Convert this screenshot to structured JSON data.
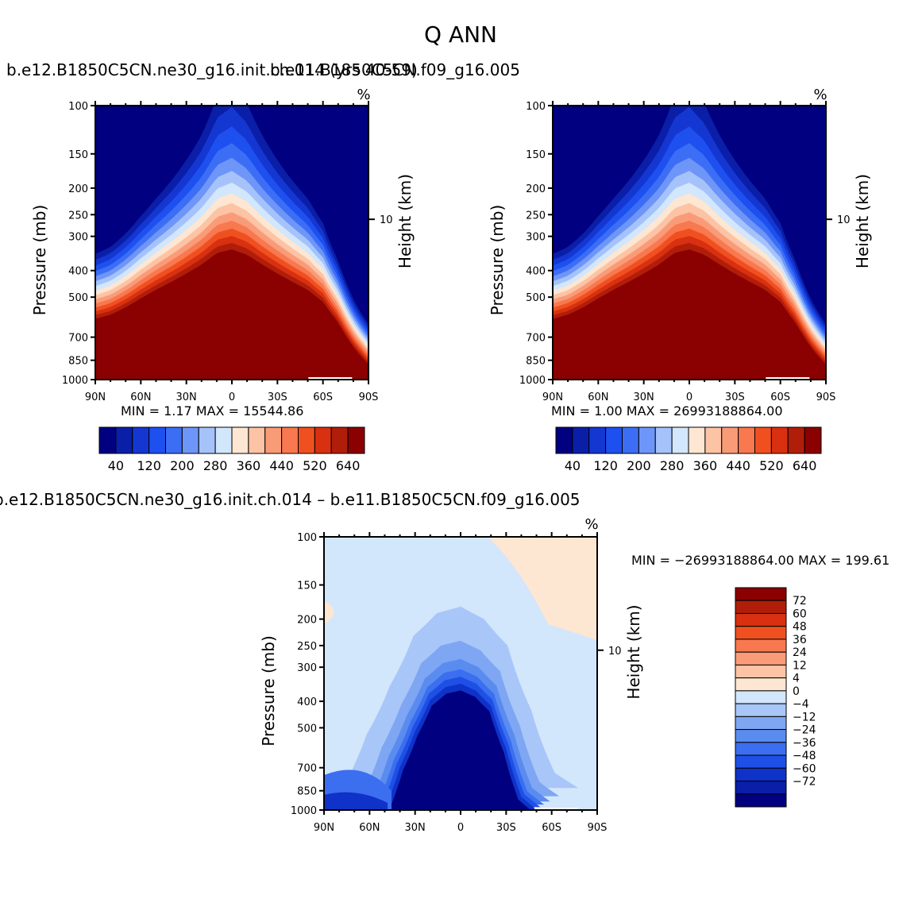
{
  "figure_title": "Q  ANN",
  "colors": {
    "main_levels": [
      "#000080",
      "#0a1ea8",
      "#1437d2",
      "#1e50f0",
      "#3c6ef5",
      "#6e96f8",
      "#a5c3fa",
      "#d2e6fc",
      "#fde6d2",
      "#fcc3a5",
      "#fa9b78",
      "#f87850",
      "#f05020",
      "#d83010",
      "#b01e0a",
      "#8b0000"
    ],
    "diff_levels": [
      "#000080",
      "#0a1ea8",
      "#0f32c8",
      "#1e50e6",
      "#3c6ef0",
      "#5a8cf0",
      "#7ea6f3",
      "#a8c6f8",
      "#d2e6fc",
      "#fde6d2",
      "#fcc3a5",
      "#fa9b78",
      "#f87850",
      "#f05020",
      "#d83010",
      "#b01e0a",
      "#8b0000"
    ]
  },
  "chart_data": [
    {
      "type": "contour",
      "title": "b.e12.B1850C5CN.ne30_g16.init.ch.014 (yrs 40-59)",
      "units": "%",
      "xlabel": "",
      "ylabel": "Pressure (mb)",
      "ylabel_right": "Height (km)",
      "x_ticks": [
        "90N",
        "60N",
        "30N",
        "0",
        "30S",
        "60S",
        "90S"
      ],
      "y_ticks": [
        "100",
        "150",
        "200",
        "250",
        "300",
        "400",
        "500",
        "700",
        "850",
        "1000"
      ],
      "y_values": [
        100,
        150,
        200,
        250,
        300,
        400,
        500,
        700,
        850,
        1000
      ],
      "right_ticks": [
        "10"
      ],
      "xlim": [
        90,
        -90
      ],
      "ylim": [
        1000,
        100
      ],
      "min_label": "MIN =",
      "min_value": "1.17",
      "max_label": "MAX =",
      "max_value": "15544.86",
      "colorbar_labels": [
        "40",
        "120",
        "200",
        "280",
        "360",
        "440",
        "520",
        "640"
      ],
      "saturation_profile": {
        "lat": [
          90,
          80,
          70,
          60,
          50,
          40,
          30,
          20,
          10,
          0,
          -10,
          -20,
          -30,
          -40,
          -50,
          -60,
          -70,
          -75,
          -80,
          -85,
          -90
        ],
        "pressure_mb": [
          600,
          580,
          545,
          505,
          470,
          440,
          410,
          380,
          345,
          335,
          350,
          380,
          410,
          440,
          470,
          520,
          620,
          690,
          760,
          820,
          880
        ]
      },
      "band_spacing_mb": 18
    },
    {
      "type": "contour",
      "title": "b.e11.B1850C5CN.f09_g16.005",
      "units": "%",
      "xlabel": "",
      "ylabel": "Pressure (mb)",
      "ylabel_right": "Height (km)",
      "x_ticks": [
        "90N",
        "60N",
        "30N",
        "0",
        "30S",
        "60S",
        "90S"
      ],
      "y_ticks": [
        "100",
        "150",
        "200",
        "250",
        "300",
        "400",
        "500",
        "700",
        "850",
        "1000"
      ],
      "y_values": [
        100,
        150,
        200,
        250,
        300,
        400,
        500,
        700,
        850,
        1000
      ],
      "right_ticks": [
        "10"
      ],
      "xlim": [
        90,
        -90
      ],
      "ylim": [
        1000,
        100
      ],
      "min_label": "MIN =",
      "min_value": "1.00",
      "max_label": "MAX =",
      "max_value": "26993188864.00",
      "colorbar_labels": [
        "40",
        "120",
        "200",
        "280",
        "360",
        "440",
        "520",
        "640"
      ],
      "saturation_profile": {
        "lat": [
          90,
          80,
          70,
          60,
          50,
          40,
          30,
          20,
          10,
          0,
          -10,
          -20,
          -30,
          -40,
          -50,
          -60,
          -70,
          -75,
          -80,
          -85,
          -90
        ],
        "pressure_mb": [
          600,
          580,
          545,
          505,
          470,
          440,
          410,
          380,
          345,
          335,
          350,
          380,
          410,
          440,
          470,
          520,
          620,
          690,
          760,
          820,
          880
        ]
      },
      "band_spacing_mb": 18
    },
    {
      "type": "contour",
      "title": "b.e12.B1850C5CN.ne30_g16.init.ch.014 – b.e11.B1850C5CN.f09_g16.005",
      "units": "%",
      "xlabel": "",
      "ylabel": "Pressure (mb)",
      "ylabel_right": "Height (km)",
      "x_ticks": [
        "90N",
        "60N",
        "30N",
        "0",
        "30S",
        "60S",
        "90S"
      ],
      "y_ticks": [
        "100",
        "150",
        "200",
        "250",
        "300",
        "400",
        "500",
        "700",
        "850",
        "1000"
      ],
      "y_values": [
        100,
        150,
        200,
        250,
        300,
        400,
        500,
        700,
        850,
        1000
      ],
      "right_ticks": [
        "10"
      ],
      "xlim": [
        90,
        -90
      ],
      "ylim": [
        1000,
        100
      ],
      "min_label": "MIN =",
      "min_value": "−26993188864.00",
      "max_label": "MAX =",
      "max_value": "199.61",
      "colorbar_labels": [
        "72",
        "60",
        "48",
        "36",
        "24",
        "12",
        "4",
        "0",
        "−4",
        "−12",
        "−24",
        "−36",
        "−48",
        "−60",
        "−72"
      ],
      "diff_profile": {
        "lat": [
          -50,
          -40,
          -30,
          -20,
          -10,
          0,
          10,
          20,
          30,
          40,
          50
        ],
        "pressure_mb": [
          1000,
          900,
          600,
          420,
          370,
          350,
          360,
          400,
          520,
          700,
          1000
        ]
      }
    }
  ]
}
